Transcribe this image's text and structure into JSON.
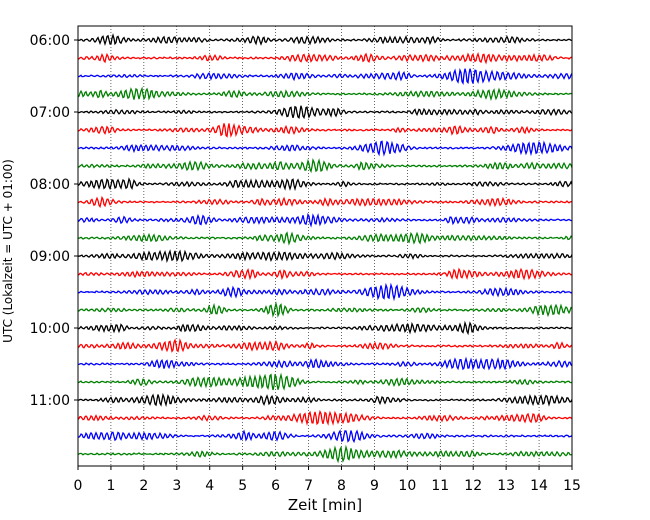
{
  "chart_data": {
    "type": "line",
    "title": "",
    "xlabel": "Zeit  [min]",
    "ylabel": "UTC (Lokalzeit = UTC + 01:00)",
    "xlim": [
      0,
      15
    ],
    "x_ticks": [
      "0",
      "1",
      "2",
      "3",
      "4",
      "5",
      "6",
      "7",
      "8",
      "9",
      "10",
      "11",
      "12",
      "13",
      "14",
      "15"
    ],
    "y_ticks": [
      "06:00",
      "07:00",
      "08:00",
      "09:00",
      "10:00",
      "11:00"
    ],
    "trace_interval_minutes": 15,
    "first_trace": "06:00",
    "last_trace": "11:45",
    "trace_count": 24,
    "trace_colors": [
      "#000000",
      "#ff0000",
      "#0000ff",
      "#008000"
    ],
    "grid": "vertical dotted at each minute",
    "legend": "none"
  }
}
